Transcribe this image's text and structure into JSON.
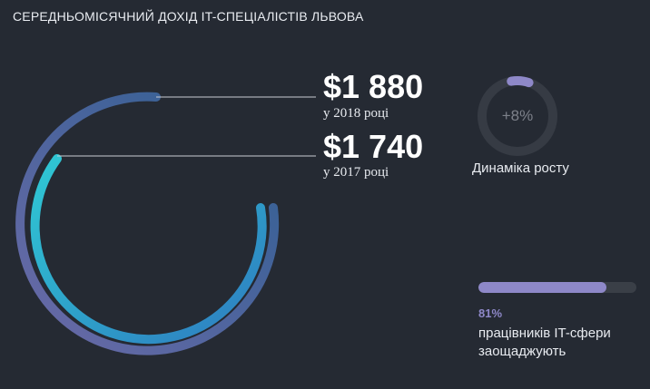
{
  "header": {
    "title": "СЕРЕДНЬОМІСЯЧНИЙ ДОХІД IT-СПЕЦІАЛІСТІВ ЛЬВОВА"
  },
  "income": {
    "y2018": {
      "value": "$1 880",
      "caption": "у 2018 році"
    },
    "y2017": {
      "value": "$1 740",
      "caption": "у 2017 році"
    }
  },
  "growth": {
    "label": "+8%",
    "caption": "Динаміка росту",
    "percent": 8
  },
  "savings": {
    "percent_label": "81%",
    "text": "працівників IT-сфери заощаджують",
    "percent": 81
  },
  "colors": {
    "background": "#252a33",
    "outer_ring_start": "#6b6aa8",
    "outer_ring_end": "#2f5f92",
    "inner_ring_start": "#2fc8d4",
    "inner_ring_end": "#2e7cc0",
    "accent": "#8e88c8",
    "track": "#3a3f47"
  }
}
